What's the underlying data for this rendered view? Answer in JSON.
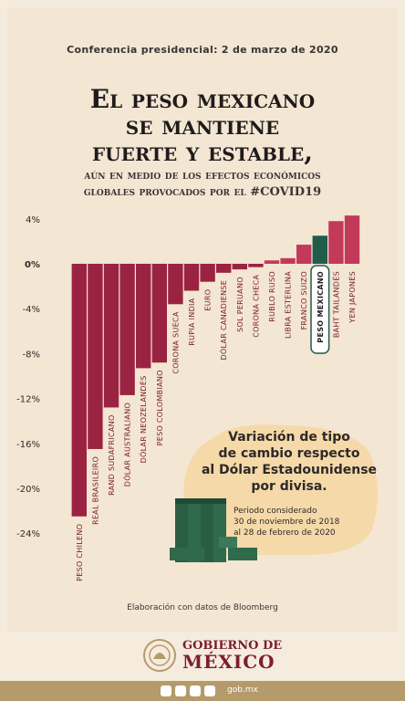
{
  "header": {
    "conference": "Conferencia presidencial: 2 de marzo de 2020",
    "title_lines": [
      "El peso mexicano",
      "se mantiene",
      "fuerte y estable,"
    ],
    "subtitle_lines": [
      "aún en medio de los efectos económicos",
      "globales provocados por el #COVID19"
    ]
  },
  "chart_data": {
    "type": "bar",
    "categories": [
      "Peso chileno",
      "Real brasileiro",
      "Rand sudafricano",
      "Dólar australiano",
      "Dólar neozelandés",
      "Peso colombiano",
      "Corona sueca",
      "Rupia india",
      "Euro",
      "Dólar canadiense",
      "Sol peruano",
      "Corona checa",
      "Rublo ruso",
      "Libra esterlina",
      "Franco suizo",
      "Peso mexicano",
      "Baht tailandés",
      "Yen japonés"
    ],
    "values": [
      -22.5,
      -16.5,
      -12.8,
      -11.7,
      -9.3,
      -8.8,
      -3.6,
      -2.4,
      -1.6,
      -0.8,
      -0.5,
      -0.3,
      0.3,
      0.5,
      1.7,
      2.5,
      3.8,
      4.3
    ],
    "ylim": [
      -24,
      4
    ],
    "yticks": [
      "4%",
      "0%",
      "-4%",
      "-8%",
      "-12%",
      "-16%",
      "-20%",
      "-24%"
    ],
    "highlight": "Peso mexicano",
    "colors": {
      "negative": "#9b2342",
      "positive": "#c23a59",
      "highlight": "#1f5c4a"
    }
  },
  "box": {
    "title_lines": [
      "Variación de tipo",
      "de cambio respecto",
      "al Dólar Estadounidense",
      "por divisa."
    ],
    "period_lines": [
      "Periodo considerado",
      "30 de noviembre de 2018",
      "al 28 de febrero de 2020"
    ]
  },
  "source": "Elaboración con datos de Bloomberg",
  "footer": {
    "gov_line1": "GOBIERNO DE",
    "gov_line2": "MÉXICO",
    "website": "gob.mx",
    "social_icons": [
      "facebook-icon",
      "twitter-icon",
      "instagram-icon",
      "youtube-icon"
    ]
  }
}
